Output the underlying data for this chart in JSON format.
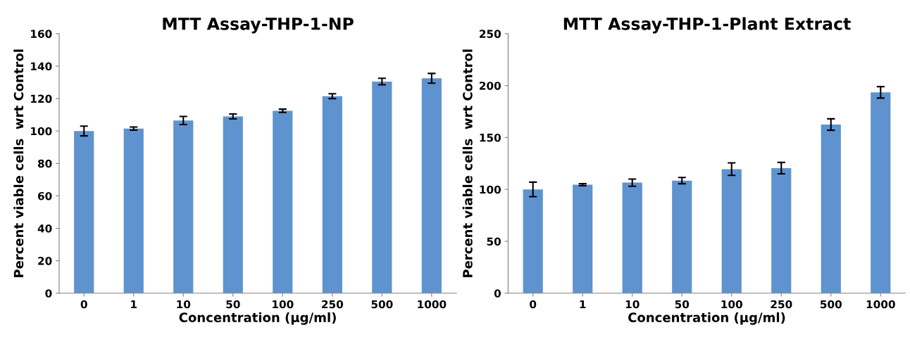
{
  "chart_data": [
    {
      "type": "bar",
      "title": "MTT Assay-THP-1-NP",
      "xlabel": "Concentration (µg/ml)",
      "ylabel": "Percent viable cells  wrt Control",
      "categories": [
        "0",
        "1",
        "10",
        "50",
        "100",
        "250",
        "500",
        "1000"
      ],
      "color": "#5f93cf",
      "values": [
        100,
        101.5,
        106.5,
        109,
        112.5,
        121.5,
        130.5,
        132.5
      ],
      "errors": [
        3,
        1,
        2.5,
        1.5,
        1,
        1.5,
        2,
        3
      ],
      "ylim": [
        0,
        160
      ],
      "yticks": [
        0,
        20,
        40,
        60,
        80,
        100,
        120,
        140,
        160
      ],
      "grid": false,
      "legend": false
    },
    {
      "type": "bar",
      "title": "MTT Assay-THP-1-Plant Extract",
      "xlabel": "Concentration (µg/ml)",
      "ylabel": "Percent viable cells  wrt Control",
      "categories": [
        "0",
        "1",
        "10",
        "50",
        "100",
        "250",
        "500",
        "1000"
      ],
      "color": "#5f93cf",
      "values": [
        100,
        104.5,
        106.5,
        108.5,
        119.5,
        120.5,
        162.5,
        193.5
      ],
      "errors": [
        7,
        1,
        3.5,
        3,
        6,
        5.5,
        5.5,
        5.5
      ],
      "ylim": [
        0,
        250
      ],
      "yticks": [
        0,
        50,
        100,
        150,
        200,
        250
      ],
      "grid": false,
      "legend": false
    }
  ]
}
